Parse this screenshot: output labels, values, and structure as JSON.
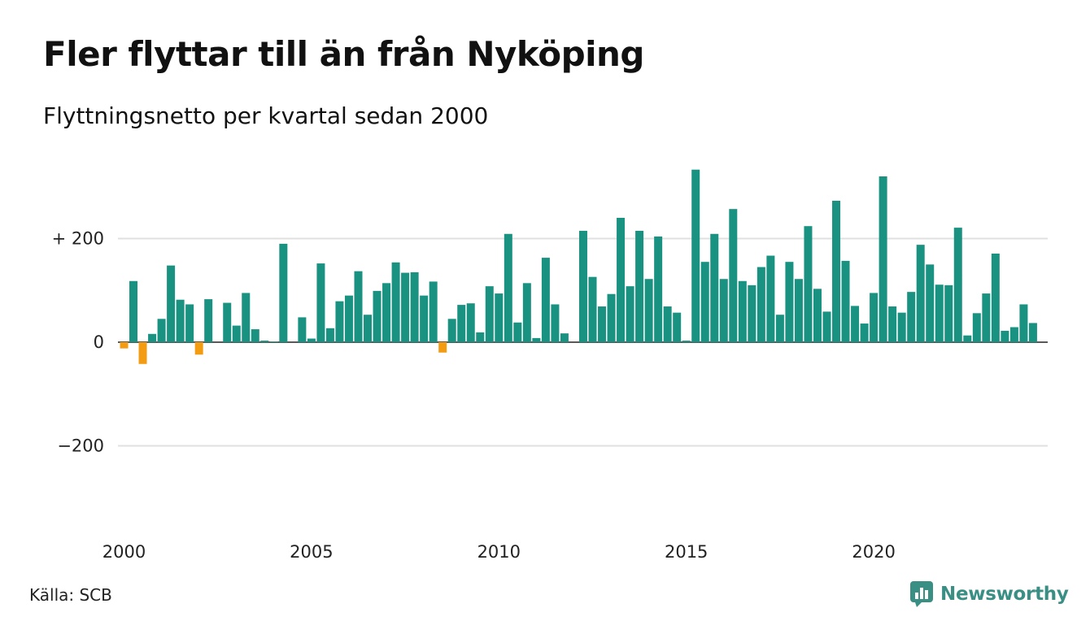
{
  "title": "Fler flyttar till än från Nyköping",
  "subtitle": "Flyttningsnetto per kvartal sedan 2000",
  "source": "Källa: SCB",
  "brand": "Newsworthy",
  "colors": {
    "positive": "#1a9282",
    "negative": "#f39c12",
    "grid": "#e0e0e0",
    "brand": "#3a8f84"
  },
  "chart_data": {
    "type": "bar",
    "title": "Fler flyttar till än från Nyköping",
    "subtitle": "Flyttningsnetto per kvartal sedan 2000",
    "xlabel": "",
    "ylabel": "",
    "ylim": [
      -330,
      340
    ],
    "yticks": [
      {
        "value": 200,
        "label": "+ 200"
      },
      {
        "value": 0,
        "label": "0"
      },
      {
        "value": -200,
        "label": "−200"
      }
    ],
    "xticks": [
      {
        "value": 2000,
        "label": "2000"
      },
      {
        "value": 2005,
        "label": "2005"
      },
      {
        "value": 2010,
        "label": "2010"
      },
      {
        "value": 2015,
        "label": "2015"
      },
      {
        "value": 2020,
        "label": "2020"
      }
    ],
    "start_year": 2000,
    "periods_per_year": 4,
    "grid": true,
    "values": [
      -12,
      118,
      -42,
      16,
      45,
      148,
      82,
      73,
      -24,
      83,
      0,
      76,
      32,
      95,
      25,
      3,
      1,
      190,
      0,
      48,
      7,
      152,
      27,
      79,
      90,
      137,
      53,
      99,
      114,
      154,
      134,
      135,
      90,
      117,
      -20,
      45,
      72,
      75,
      19,
      108,
      94,
      209,
      38,
      114,
      8,
      163,
      73,
      17,
      0,
      215,
      126,
      69,
      93,
      240,
      108,
      215,
      122,
      204,
      69,
      57,
      3,
      333,
      155,
      209,
      122,
      257,
      118,
      110,
      145,
      167,
      53,
      155,
      122,
      224,
      103,
      59,
      273,
      157,
      70,
      36,
      95,
      320,
      69,
      57,
      97,
      188,
      150,
      111,
      110,
      221,
      13,
      56,
      94,
      171,
      22,
      29,
      73,
      37
    ]
  }
}
